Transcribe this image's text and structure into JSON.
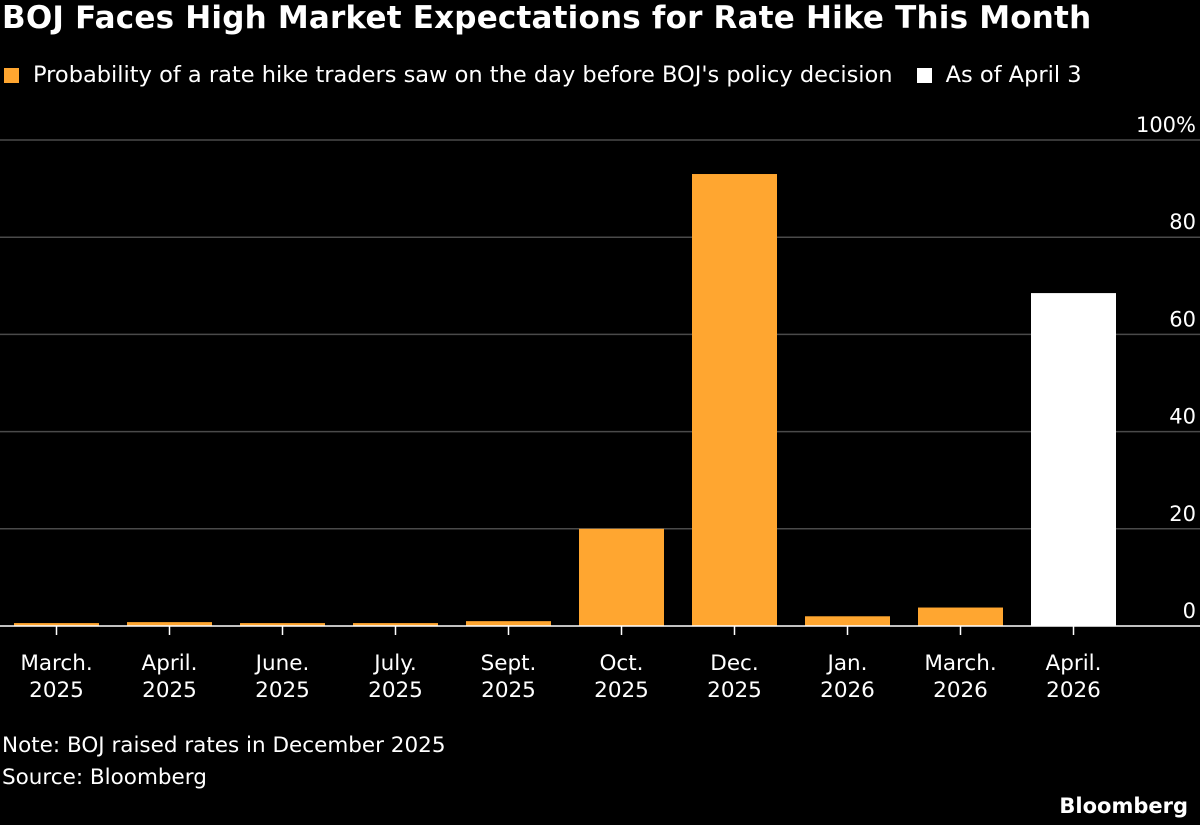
{
  "chart_data": {
    "type": "bar",
    "title": "BOJ Faces High Market Expectations for Rate Hike This Month",
    "legend": [
      {
        "label": "Probability of a rate hike traders saw on the day before BOJ's policy decision",
        "color": "#ffa630"
      },
      {
        "label": "As of April 3",
        "color": "#ffffff"
      }
    ],
    "categories": [
      [
        "March.",
        "2025"
      ],
      [
        "April.",
        "2025"
      ],
      [
        "June.",
        "2025"
      ],
      [
        "July.",
        "2025"
      ],
      [
        "Sept.",
        "2025"
      ],
      [
        "Oct.",
        "2025"
      ],
      [
        "Dec.",
        "2025"
      ],
      [
        "Jan.",
        "2026"
      ],
      [
        "March.",
        "2026"
      ],
      [
        "April.",
        "2026"
      ]
    ],
    "values": [
      0.6,
      0.8,
      0.6,
      0.6,
      1.0,
      20.0,
      93.0,
      2.0,
      3.8,
      68.5
    ],
    "bar_colors": [
      "#ffa630",
      "#ffa630",
      "#ffa630",
      "#ffa630",
      "#ffa630",
      "#ffa630",
      "#ffa630",
      "#ffa630",
      "#ffa630",
      "#ffffff"
    ],
    "ylim": [
      0,
      100
    ],
    "yticks": [
      0,
      20,
      40,
      60,
      80,
      100
    ],
    "ytick_labels": [
      "0",
      "20",
      "40",
      "60",
      "80",
      "100%"
    ],
    "xlabel": "",
    "ylabel": "",
    "grid": true,
    "legend_position": "top-left"
  },
  "note": "Note: BOJ raised rates in December 2025",
  "source": "Source: Bloomberg",
  "brand": "Bloomberg"
}
